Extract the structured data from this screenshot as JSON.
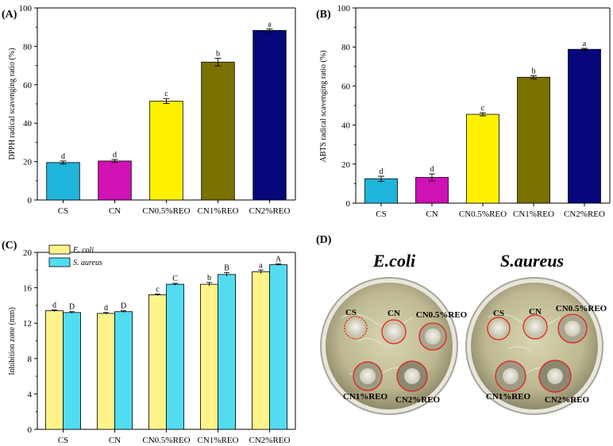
{
  "chart_data": [
    {
      "id": "A",
      "panel_label": "(A)",
      "type": "bar",
      "categories": [
        "CS",
        "CN",
        "CN0.5%REO",
        "CN1%REO",
        "CN2%REO"
      ],
      "values": [
        19.5,
        20.3,
        51.5,
        71.8,
        88.3
      ],
      "errors": [
        0.8,
        0.8,
        1.3,
        2.0,
        0.8
      ],
      "sig_letters": [
        "d",
        "d",
        "c",
        "b",
        "a"
      ],
      "colors": [
        "#1fb4dc",
        "#d011b4",
        "#fff200",
        "#7b7100",
        "#05077a"
      ],
      "ylabel": "DPPH radical scavenging ratio (%)",
      "xlabel": "",
      "ylim": [
        0,
        100
      ],
      "yticks": [
        0,
        20,
        40,
        60,
        80,
        100
      ],
      "ytick_labels": [
        "0",
        "20",
        "40",
        "60",
        "80",
        "100"
      ]
    },
    {
      "id": "B",
      "panel_label": "(B)",
      "type": "bar",
      "categories": [
        "CS",
        "CN",
        "CN0.5%REO",
        "CN1%REO",
        "CN2%REO"
      ],
      "values": [
        12.5,
        13.2,
        45.5,
        64.5,
        78.8
      ],
      "errors": [
        1.3,
        1.8,
        0.8,
        0.8,
        0.5
      ],
      "sig_letters": [
        "d",
        "d",
        "c",
        "b",
        "a"
      ],
      "colors": [
        "#1fb4dc",
        "#d011b4",
        "#fff200",
        "#7b7100",
        "#05077a"
      ],
      "ylabel": "ABTS radical scavenging ratio (%)",
      "xlabel": "",
      "ylim": [
        0,
        100
      ],
      "yticks": [
        0,
        20,
        40,
        60,
        80,
        100
      ],
      "ytick_labels": [
        "0",
        "20",
        "40",
        "60",
        "80",
        "100"
      ]
    },
    {
      "id": "C",
      "panel_label": "(C)",
      "type": "bar",
      "categories": [
        "CS",
        "CN",
        "CN0.5%REO",
        "CN1%REO",
        "CN2%REO"
      ],
      "series": [
        {
          "name": "E. coli",
          "values": [
            13.4,
            13.1,
            15.2,
            16.4,
            17.8
          ],
          "errors": [
            0.1,
            0.1,
            0.1,
            0.2,
            0.2
          ],
          "sig_letters": [
            "d",
            "d",
            "c",
            "b",
            "a"
          ],
          "color": "#fff38a"
        },
        {
          "name": "S. aureus",
          "values": [
            13.2,
            13.3,
            16.4,
            17.5,
            18.6
          ],
          "errors": [
            0.1,
            0.1,
            0.1,
            0.2,
            0.1
          ],
          "sig_letters": [
            "D",
            "D",
            "C",
            "B",
            "A"
          ],
          "color": "#52dcf0"
        }
      ],
      "ylabel": "Inhibition zone (mm)",
      "xlabel": "",
      "ylim": [
        0,
        20
      ],
      "yticks": [
        0,
        4,
        8,
        12,
        16,
        20
      ],
      "ytick_labels": [
        "0",
        "4",
        "8",
        "12",
        "16",
        "20"
      ],
      "legend_position": "top-left"
    }
  ],
  "photo": {
    "panel_label": "(D)",
    "ecoli_title": "E.coli",
    "saureus_title": "S.aureus",
    "ecoli_labels": [
      "CS",
      "CN",
      "CN0.5%REO",
      "CN1%REO",
      "CN2%REO"
    ],
    "saureus_labels": [
      "CS",
      "CN",
      "CN0.5%REO",
      "CN1%REO",
      "CN2%REO"
    ]
  }
}
